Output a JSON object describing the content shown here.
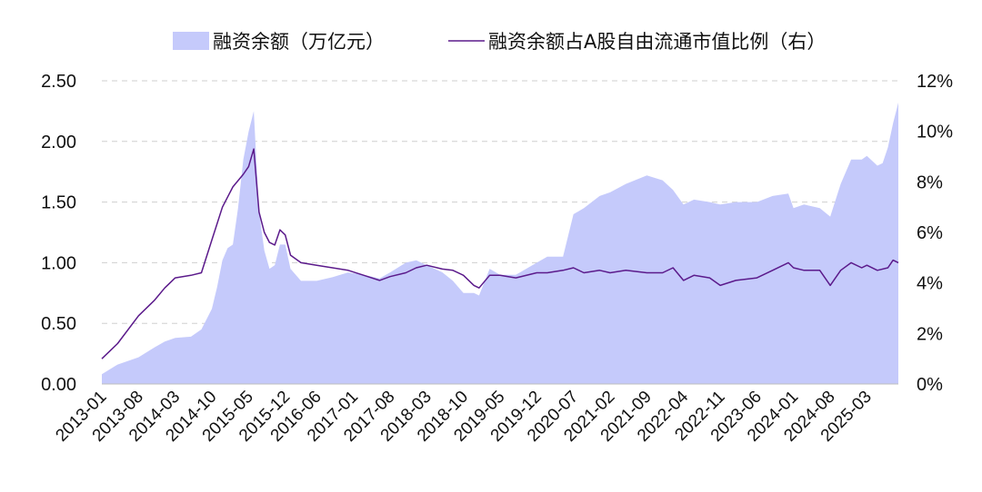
{
  "chart_data": {
    "type": "area",
    "legend": {
      "area_label": "融资余额（万亿元）",
      "line_label": "融资余额占A股自由流通市值比例（右）",
      "placement": "top"
    },
    "grid": true,
    "colors": {
      "area": "#c5cafb",
      "line": "#5b1a8b",
      "grid": "#cfcfcf"
    },
    "y_left": {
      "ticks": [
        "0.00",
        "0.50",
        "1.00",
        "1.50",
        "2.00",
        "2.50"
      ],
      "range": [
        0,
        2.5
      ]
    },
    "y_right": {
      "ticks": [
        "0%",
        "2%",
        "4%",
        "6%",
        "8%",
        "10%",
        "12%"
      ],
      "range": [
        0,
        12
      ]
    },
    "x_ticks": [
      "2013-01",
      "2013-08",
      "2014-03",
      "2014-10",
      "2015-05",
      "2015-12",
      "2016-06",
      "2017-01",
      "2017-08",
      "2018-03",
      "2018-10",
      "2019-05",
      "2019-12",
      "2020-07",
      "2021-02",
      "2021-09",
      "2022-04",
      "2022-11",
      "2023-06",
      "2024-01",
      "2024-08",
      "2025-03"
    ],
    "x_range": [
      "2013-01",
      "2025-09"
    ],
    "series": [
      {
        "name": "融资余额（万亿元）",
        "axis": "left",
        "kind": "area",
        "points": [
          [
            "2013-01",
            0.08
          ],
          [
            "2013-04",
            0.16
          ],
          [
            "2013-08",
            0.22
          ],
          [
            "2013-11",
            0.3
          ],
          [
            "2014-01",
            0.35
          ],
          [
            "2014-03",
            0.38
          ],
          [
            "2014-06",
            0.39
          ],
          [
            "2014-08",
            0.45
          ],
          [
            "2014-10",
            0.62
          ],
          [
            "2014-11",
            0.8
          ],
          [
            "2014-12",
            1.02
          ],
          [
            "2015-01",
            1.12
          ],
          [
            "2015-02",
            1.15
          ],
          [
            "2015-03",
            1.45
          ],
          [
            "2015-04",
            1.85
          ],
          [
            "2015-05",
            2.08
          ],
          [
            "2015-06",
            2.25
          ],
          [
            "2015-07",
            1.42
          ],
          [
            "2015-08",
            1.1
          ],
          [
            "2015-09",
            0.95
          ],
          [
            "2015-10",
            0.98
          ],
          [
            "2015-11",
            1.15
          ],
          [
            "2015-12",
            1.15
          ],
          [
            "2016-01",
            0.95
          ],
          [
            "2016-03",
            0.85
          ],
          [
            "2016-06",
            0.85
          ],
          [
            "2016-09",
            0.88
          ],
          [
            "2016-12",
            0.92
          ],
          [
            "2017-03",
            0.9
          ],
          [
            "2017-06",
            0.87
          ],
          [
            "2017-08",
            0.92
          ],
          [
            "2017-11",
            1.0
          ],
          [
            "2018-01",
            1.02
          ],
          [
            "2018-03",
            0.98
          ],
          [
            "2018-06",
            0.92
          ],
          [
            "2018-08",
            0.85
          ],
          [
            "2018-10",
            0.75
          ],
          [
            "2018-12",
            0.75
          ],
          [
            "2019-01",
            0.73
          ],
          [
            "2019-03",
            0.95
          ],
          [
            "2019-05",
            0.9
          ],
          [
            "2019-08",
            0.9
          ],
          [
            "2019-12",
            1.0
          ],
          [
            "2020-02",
            1.05
          ],
          [
            "2020-05",
            1.05
          ],
          [
            "2020-07",
            1.4
          ],
          [
            "2020-09",
            1.45
          ],
          [
            "2020-12",
            1.55
          ],
          [
            "2021-02",
            1.58
          ],
          [
            "2021-05",
            1.65
          ],
          [
            "2021-09",
            1.72
          ],
          [
            "2021-12",
            1.68
          ],
          [
            "2022-02",
            1.6
          ],
          [
            "2022-04",
            1.48
          ],
          [
            "2022-06",
            1.52
          ],
          [
            "2022-09",
            1.5
          ],
          [
            "2022-11",
            1.48
          ],
          [
            "2023-02",
            1.5
          ],
          [
            "2023-06",
            1.5
          ],
          [
            "2023-09",
            1.55
          ],
          [
            "2023-12",
            1.57
          ],
          [
            "2024-01",
            1.45
          ],
          [
            "2024-03",
            1.48
          ],
          [
            "2024-06",
            1.45
          ],
          [
            "2024-08",
            1.38
          ],
          [
            "2024-10",
            1.65
          ],
          [
            "2024-12",
            1.85
          ],
          [
            "2025-02",
            1.85
          ],
          [
            "2025-03",
            1.88
          ],
          [
            "2025-05",
            1.8
          ],
          [
            "2025-06",
            1.82
          ],
          [
            "2025-07",
            1.95
          ],
          [
            "2025-08",
            2.15
          ],
          [
            "2025-09",
            2.32
          ]
        ]
      },
      {
        "name": "融资余额占A股自由流通市值比例（右）",
        "axis": "right",
        "kind": "line",
        "points": [
          [
            "2013-01",
            1.0
          ],
          [
            "2013-04",
            1.6
          ],
          [
            "2013-08",
            2.7
          ],
          [
            "2013-11",
            3.3
          ],
          [
            "2014-01",
            3.8
          ],
          [
            "2014-03",
            4.2
          ],
          [
            "2014-06",
            4.3
          ],
          [
            "2014-08",
            4.4
          ],
          [
            "2014-10",
            5.7
          ],
          [
            "2014-12",
            7.0
          ],
          [
            "2015-02",
            7.8
          ],
          [
            "2015-04",
            8.3
          ],
          [
            "2015-05",
            8.6
          ],
          [
            "2015-06",
            9.3
          ],
          [
            "2015-07",
            6.8
          ],
          [
            "2015-08",
            6.0
          ],
          [
            "2015-09",
            5.6
          ],
          [
            "2015-10",
            5.5
          ],
          [
            "2015-11",
            6.1
          ],
          [
            "2015-12",
            5.9
          ],
          [
            "2016-01",
            5.1
          ],
          [
            "2016-03",
            4.8
          ],
          [
            "2016-06",
            4.7
          ],
          [
            "2016-09",
            4.6
          ],
          [
            "2016-12",
            4.5
          ],
          [
            "2017-03",
            4.3
          ],
          [
            "2017-06",
            4.1
          ],
          [
            "2017-08",
            4.25
          ],
          [
            "2017-11",
            4.4
          ],
          [
            "2018-01",
            4.6
          ],
          [
            "2018-03",
            4.7
          ],
          [
            "2018-06",
            4.55
          ],
          [
            "2018-08",
            4.5
          ],
          [
            "2018-10",
            4.3
          ],
          [
            "2018-12",
            3.9
          ],
          [
            "2019-01",
            3.8
          ],
          [
            "2019-03",
            4.3
          ],
          [
            "2019-05",
            4.3
          ],
          [
            "2019-08",
            4.2
          ],
          [
            "2019-12",
            4.4
          ],
          [
            "2020-02",
            4.4
          ],
          [
            "2020-05",
            4.5
          ],
          [
            "2020-07",
            4.6
          ],
          [
            "2020-09",
            4.4
          ],
          [
            "2020-12",
            4.5
          ],
          [
            "2021-02",
            4.4
          ],
          [
            "2021-05",
            4.5
          ],
          [
            "2021-09",
            4.4
          ],
          [
            "2021-12",
            4.4
          ],
          [
            "2022-02",
            4.6
          ],
          [
            "2022-04",
            4.1
          ],
          [
            "2022-06",
            4.3
          ],
          [
            "2022-09",
            4.2
          ],
          [
            "2022-11",
            3.9
          ],
          [
            "2023-02",
            4.1
          ],
          [
            "2023-06",
            4.2
          ],
          [
            "2023-09",
            4.5
          ],
          [
            "2023-12",
            4.8
          ],
          [
            "2024-01",
            4.6
          ],
          [
            "2024-03",
            4.5
          ],
          [
            "2024-06",
            4.5
          ],
          [
            "2024-08",
            3.9
          ],
          [
            "2024-10",
            4.5
          ],
          [
            "2024-12",
            4.8
          ],
          [
            "2025-02",
            4.6
          ],
          [
            "2025-03",
            4.7
          ],
          [
            "2025-05",
            4.5
          ],
          [
            "2025-07",
            4.6
          ],
          [
            "2025-08",
            4.9
          ],
          [
            "2025-09",
            4.8
          ]
        ]
      }
    ]
  }
}
